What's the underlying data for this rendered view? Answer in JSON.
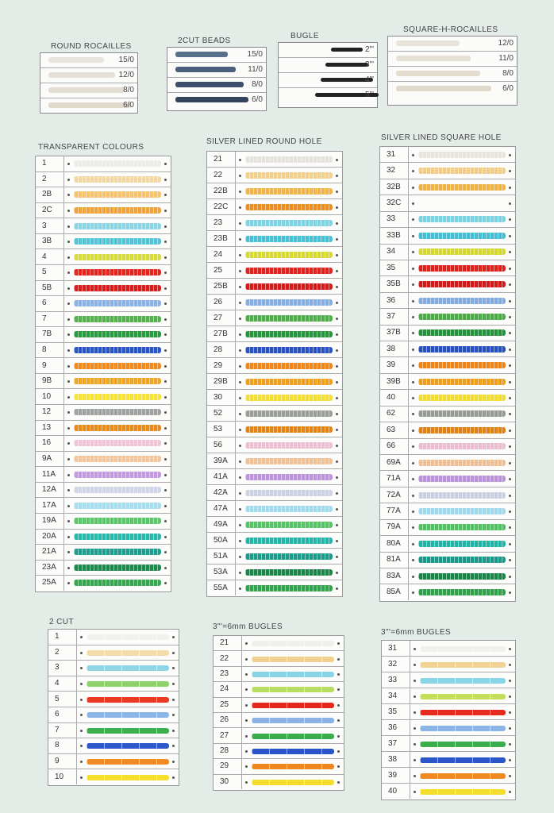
{
  "size_cards": [
    {
      "title": "ROUND ROCAILLES",
      "rows": [
        {
          "label": "15/0",
          "color": "#e9e5de"
        },
        {
          "label": "12/0",
          "color": "#e6e1d8"
        },
        {
          "label": "8/0",
          "color": "#e3ddd2"
        },
        {
          "label": "6/0",
          "color": "#e0dacd"
        }
      ]
    },
    {
      "title": "2CUT BEADS",
      "rows": [
        {
          "label": "15/0",
          "color": "#58708c"
        },
        {
          "label": "11/0",
          "color": "#4a5f7c"
        },
        {
          "label": "8/0",
          "color": "#3d4f6a"
        },
        {
          "label": "6/0",
          "color": "#34435c"
        }
      ]
    },
    {
      "title": "BUGLE",
      "rows": [
        {
          "label": "2\"'",
          "color": "#222"
        },
        {
          "label": "3\"'",
          "color": "#222"
        },
        {
          "label": "4\"'",
          "color": "#222"
        },
        {
          "label": "5\"'",
          "color": "#222"
        }
      ]
    },
    {
      "title": "SQUARE-H-ROCAILLES",
      "rows": [
        {
          "label": "12/0",
          "color": "#e9e4da"
        },
        {
          "label": "11/0",
          "color": "#e6e0d5"
        },
        {
          "label": "8/0",
          "color": "#e3dccf"
        },
        {
          "label": "6/0",
          "color": "#e0d8ca"
        }
      ]
    }
  ],
  "tables": [
    {
      "title": "TRANSPARENT COLOURS",
      "style": "beads",
      "rows": [
        {
          "code": "1",
          "color": "#ecebe6"
        },
        {
          "code": "2",
          "color": "#f3d8a4"
        },
        {
          "code": "2B",
          "color": "#f5c36e"
        },
        {
          "code": "2C",
          "color": "#f2a23a"
        },
        {
          "code": "3",
          "color": "#8ad6e4"
        },
        {
          "code": "3B",
          "color": "#53c3d6"
        },
        {
          "code": "4",
          "color": "#d7db3e"
        },
        {
          "code": "5",
          "color": "#e5261f"
        },
        {
          "code": "5B",
          "color": "#d81e1e"
        },
        {
          "code": "6",
          "color": "#8cb3e6"
        },
        {
          "code": "7",
          "color": "#56b04d"
        },
        {
          "code": "7B",
          "color": "#2a9a3e"
        },
        {
          "code": "8",
          "color": "#2a56c8"
        },
        {
          "code": "9",
          "color": "#f08a1f"
        },
        {
          "code": "9B",
          "color": "#f2a424"
        },
        {
          "code": "10",
          "color": "#f7e23a"
        },
        {
          "code": "12",
          "color": "#9ea3a0"
        },
        {
          "code": "13",
          "color": "#e68a1e"
        },
        {
          "code": "16",
          "color": "#efc4d6"
        },
        {
          "code": "9A",
          "color": "#f2c59a"
        },
        {
          "code": "11A",
          "color": "#c19ae0"
        },
        {
          "code": "12A",
          "color": "#cfd4e6"
        },
        {
          "code": "17A",
          "color": "#a6def0"
        },
        {
          "code": "19A",
          "color": "#5bc66a"
        },
        {
          "code": "20A",
          "color": "#28b8ac"
        },
        {
          "code": "21A",
          "color": "#1f9f8e"
        },
        {
          "code": "23A",
          "color": "#1f8a4e"
        },
        {
          "code": "25A",
          "color": "#37a650"
        }
      ]
    },
    {
      "title": "SILVER LINED ROUND HOLE",
      "style": "beads",
      "rows": [
        {
          "code": "21",
          "color": "#e6e3dc"
        },
        {
          "code": "22",
          "color": "#f2cf8a"
        },
        {
          "code": "22B",
          "color": "#f0b449"
        },
        {
          "code": "22C",
          "color": "#e88e24"
        },
        {
          "code": "23",
          "color": "#7ed4e2"
        },
        {
          "code": "23B",
          "color": "#49c0d4"
        },
        {
          "code": "24",
          "color": "#d6d834"
        },
        {
          "code": "25",
          "color": "#e0231d"
        },
        {
          "code": "25B",
          "color": "#d21c1c"
        },
        {
          "code": "26",
          "color": "#86aee2"
        },
        {
          "code": "27",
          "color": "#4fae4a"
        },
        {
          "code": "27B",
          "color": "#27953c"
        },
        {
          "code": "28",
          "color": "#2a52c2"
        },
        {
          "code": "29",
          "color": "#ee861c"
        },
        {
          "code": "29B",
          "color": "#f0a020"
        },
        {
          "code": "30",
          "color": "#f4dd34"
        },
        {
          "code": "52",
          "color": "#9a9e9a"
        },
        {
          "code": "53",
          "color": "#e28418"
        },
        {
          "code": "56",
          "color": "#ecc0d2"
        },
        {
          "code": "39A",
          "color": "#f0c196"
        },
        {
          "code": "41A",
          "color": "#bd95dc"
        },
        {
          "code": "42A",
          "color": "#ccd1e3"
        },
        {
          "code": "47A",
          "color": "#a2dbee"
        },
        {
          "code": "49A",
          "color": "#57c266"
        },
        {
          "code": "50A",
          "color": "#25b4a8"
        },
        {
          "code": "51A",
          "color": "#1c9b8a"
        },
        {
          "code": "53A",
          "color": "#1c864a"
        },
        {
          "code": "55A",
          "color": "#33a24c"
        }
      ]
    },
    {
      "title": "SILVER LINED SQUARE HOLE",
      "style": "beads",
      "rows": [
        {
          "code": "31",
          "color": "#e8e5de"
        },
        {
          "code": "32",
          "color": "#f1cd88"
        },
        {
          "code": "32B",
          "color": "#efb247"
        },
        {
          "code": "32C",
          "color": ""
        },
        {
          "code": "33",
          "color": "#7bd2e0"
        },
        {
          "code": "33B",
          "color": "#45bdd2"
        },
        {
          "code": "34",
          "color": "#d4d632"
        },
        {
          "code": "35",
          "color": "#de211b"
        },
        {
          "code": "35B",
          "color": "#d01a1a"
        },
        {
          "code": "36",
          "color": "#83abe0"
        },
        {
          "code": "37",
          "color": "#4cab47"
        },
        {
          "code": "37B",
          "color": "#24923a"
        },
        {
          "code": "38",
          "color": "#2850c0"
        },
        {
          "code": "39",
          "color": "#ec841a"
        },
        {
          "code": "39B",
          "color": "#ee9e1e"
        },
        {
          "code": "40",
          "color": "#f2db32"
        },
        {
          "code": "62",
          "color": "#979b97"
        },
        {
          "code": "63",
          "color": "#e08216"
        },
        {
          "code": "66",
          "color": "#eabed0"
        },
        {
          "code": "69A",
          "color": "#eebf94"
        },
        {
          "code": "71A",
          "color": "#ba92da"
        },
        {
          "code": "72A",
          "color": "#cacfe1"
        },
        {
          "code": "77A",
          "color": "#a0d9ec"
        },
        {
          "code": "79A",
          "color": "#54c064"
        },
        {
          "code": "80A",
          "color": "#23b2a6"
        },
        {
          "code": "81A",
          "color": "#1a9988"
        },
        {
          "code": "83A",
          "color": "#1a8448"
        },
        {
          "code": "85A",
          "color": "#31a04a"
        }
      ]
    },
    {
      "title": "2 CUT",
      "style": "tubes",
      "rows": [
        {
          "code": "1",
          "color": "#f2f1ee"
        },
        {
          "code": "2",
          "color": "#f3dca8"
        },
        {
          "code": "3",
          "color": "#8ed6e6"
        },
        {
          "code": "4",
          "color": "#8fd16a"
        },
        {
          "code": "5",
          "color": "#ea3a24"
        },
        {
          "code": "6",
          "color": "#8cb6e8"
        },
        {
          "code": "7",
          "color": "#3caf4e"
        },
        {
          "code": "8",
          "color": "#2c58cc"
        },
        {
          "code": "9",
          "color": "#f08a22"
        },
        {
          "code": "10",
          "color": "#f6e02e"
        }
      ]
    },
    {
      "title": "3\"'=6mm BUGLES",
      "style": "tubes",
      "rows": [
        {
          "code": "21",
          "color": "#f0efea"
        },
        {
          "code": "22",
          "color": "#f1d090"
        },
        {
          "code": "23",
          "color": "#88d4e4"
        },
        {
          "code": "24",
          "color": "#b9dc62"
        },
        {
          "code": "25",
          "color": "#e4281e"
        },
        {
          "code": "26",
          "color": "#8ab2e6"
        },
        {
          "code": "27",
          "color": "#3aac4c"
        },
        {
          "code": "28",
          "color": "#2a54c8"
        },
        {
          "code": "29",
          "color": "#ee8820"
        },
        {
          "code": "30",
          "color": "#f4dc2e"
        }
      ]
    },
    {
      "title": "3\"'=6mm BUGLES",
      "style": "tubes",
      "rows": [
        {
          "code": "31",
          "color": "#f1f0ec"
        },
        {
          "code": "32",
          "color": "#f1d294"
        },
        {
          "code": "33",
          "color": "#8ad5e5"
        },
        {
          "code": "34",
          "color": "#c4de5a"
        },
        {
          "code": "35",
          "color": "#e62a20"
        },
        {
          "code": "36",
          "color": "#8bb4e7"
        },
        {
          "code": "37",
          "color": "#3bad4d"
        },
        {
          "code": "38",
          "color": "#2b56ca"
        },
        {
          "code": "39",
          "color": "#ef8921"
        },
        {
          "code": "40",
          "color": "#f5dd2f"
        }
      ]
    }
  ]
}
